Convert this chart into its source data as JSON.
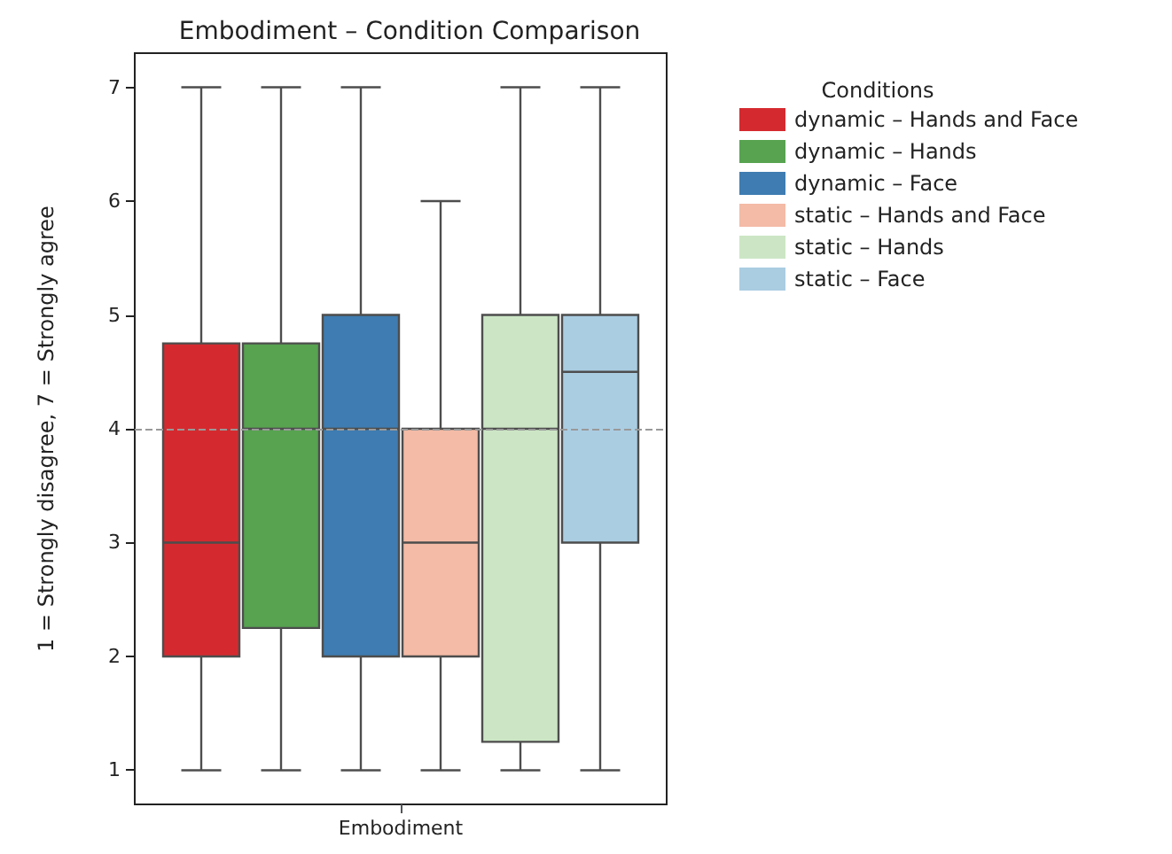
{
  "chart_data": {
    "type": "box",
    "title": "Embodiment – Condition Comparison",
    "ylabel": "1 = Strongly disagree, 7 = Strongly agree",
    "categories": [
      "Embodiment"
    ],
    "series": [
      {
        "name": "dynamic – Hands and Face",
        "color": "#d42a2f",
        "boxes": [
          {
            "low": 1,
            "q1": 2,
            "median": 3,
            "q3": 4.75,
            "high": 7
          }
        ]
      },
      {
        "name": "dynamic – Hands",
        "color": "#57a350",
        "boxes": [
          {
            "low": 1,
            "q1": 2.25,
            "median": 4,
            "q3": 4.75,
            "high": 7
          }
        ]
      },
      {
        "name": "dynamic – Face",
        "color": "#3e7cb1",
        "boxes": [
          {
            "low": 1,
            "q1": 2,
            "median": 4,
            "q3": 5,
            "high": 7
          }
        ]
      },
      {
        "name": "static – Hands and Face",
        "color": "#f4bba6",
        "boxes": [
          {
            "low": 1,
            "q1": 2,
            "median": 3,
            "q3": 4,
            "high": 6
          }
        ]
      },
      {
        "name": "static – Hands",
        "color": "#cce6c5",
        "boxes": [
          {
            "low": 1,
            "q1": 1.25,
            "median": 4,
            "q3": 5,
            "high": 7
          }
        ]
      },
      {
        "name": "static – Face",
        "color": "#aacde2",
        "boxes": [
          {
            "low": 1,
            "q1": 3,
            "median": 4.5,
            "q3": 5,
            "high": 7
          }
        ]
      }
    ],
    "ylim": [
      0.7,
      7.3
    ],
    "yticks": [
      1,
      2,
      3,
      4,
      5,
      6,
      7
    ],
    "grid": false,
    "legend": "top right",
    "legend_title": "Conditions",
    "ref_lines": [
      {
        "axis": "y",
        "value": 4,
        "color": "#999999",
        "line_style": "dashed"
      }
    ]
  }
}
